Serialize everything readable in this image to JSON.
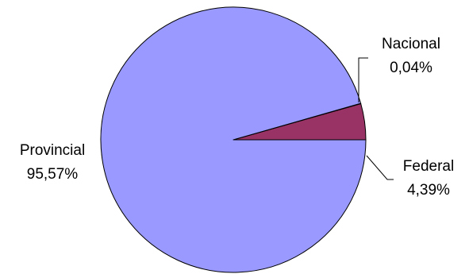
{
  "chart_data": {
    "type": "pie",
    "title": "",
    "slices": [
      {
        "label": "Federal",
        "value": 4.39,
        "value_text": "4,39%",
        "color": "#993366"
      },
      {
        "label": "Nacional",
        "value": 0.04,
        "value_text": "0,04%",
        "color": "#993366"
      },
      {
        "label": "Provincial",
        "value": 95.57,
        "value_text": "95,57%",
        "color": "#9999FF"
      }
    ],
    "legend": "none",
    "outline_color": "#000000"
  }
}
